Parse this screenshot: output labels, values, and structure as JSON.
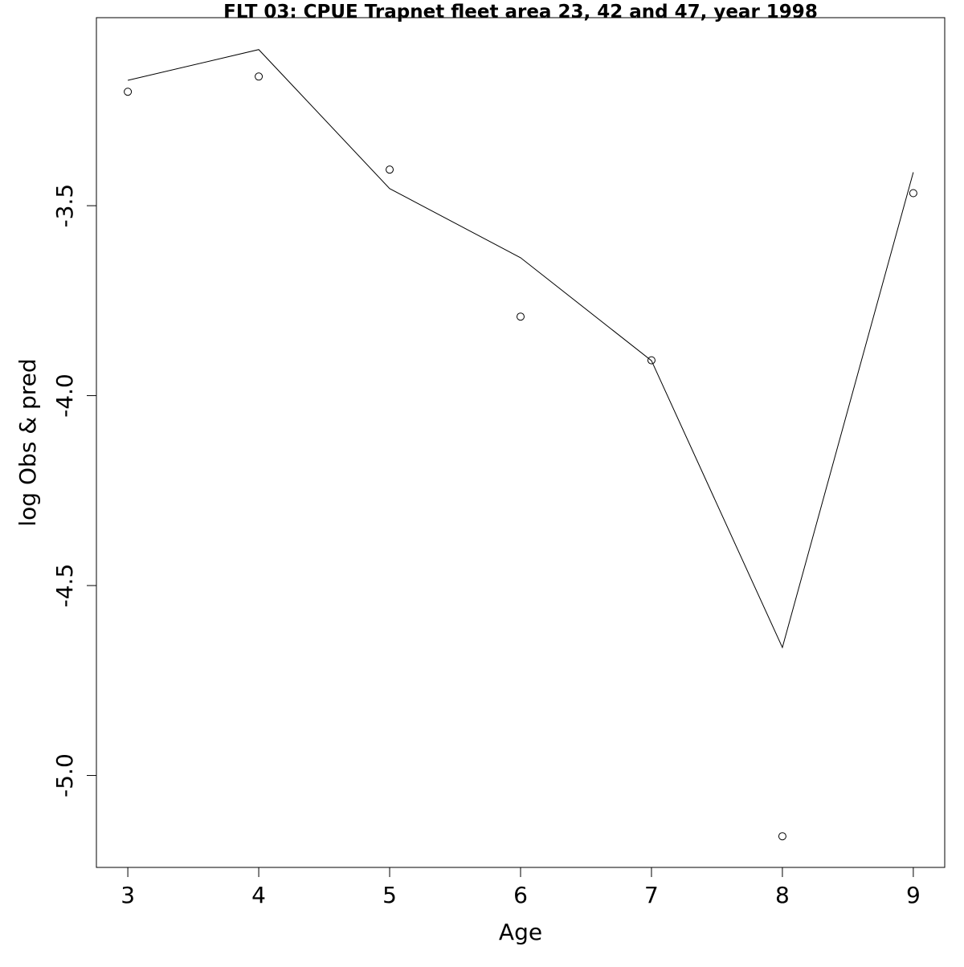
{
  "chart_data": {
    "type": "scatter",
    "title": "FLT 03: CPUE Trapnet fleet area 23, 42 and 47, year 1998",
    "xlabel": "Age",
    "ylabel": "log Obs & pred",
    "xlim": [
      2.76,
      9.24
    ],
    "ylim": [
      -5.242,
      -3.005
    ],
    "x_ticks": [
      3,
      4,
      5,
      6,
      7,
      8,
      9
    ],
    "x_tick_labels": [
      "3",
      "4",
      "5",
      "6",
      "7",
      "8",
      "9"
    ],
    "y_ticks": [
      -3.5,
      -4.0,
      -4.5,
      -5.0
    ],
    "y_tick_labels": [
      "-3.5",
      "-4.0",
      "-4.5",
      "-5.0"
    ],
    "grid": false,
    "series": [
      {
        "style": "points",
        "marker": "open-circle",
        "x": [
          3,
          4,
          5,
          6,
          7,
          8,
          9
        ],
        "y": [
          -3.2,
          -3.16,
          -3.405,
          -3.792,
          -3.907,
          -5.16,
          -3.467
        ]
      },
      {
        "style": "line",
        "x": [
          3,
          4,
          5,
          6,
          7,
          8,
          9
        ],
        "y": [
          -3.17,
          -3.089,
          -3.455,
          -3.637,
          -3.908,
          -4.663,
          -3.412
        ]
      }
    ]
  }
}
